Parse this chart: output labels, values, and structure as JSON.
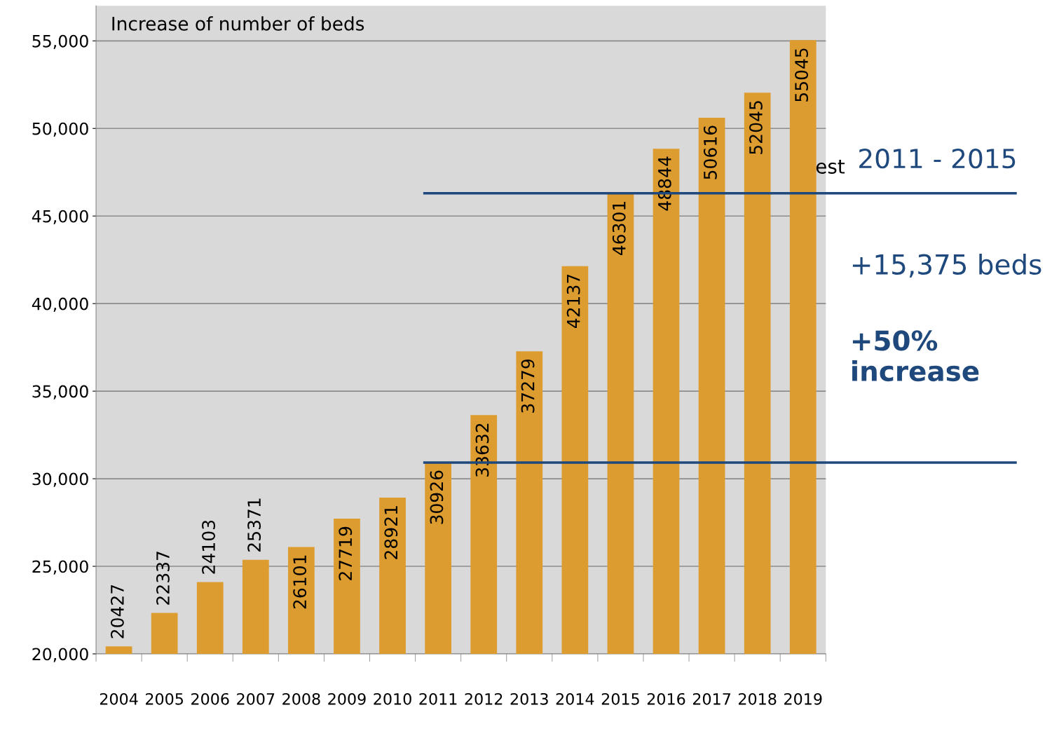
{
  "chart_data": {
    "type": "bar",
    "title": "Increase of number of beds",
    "categories": [
      "2004",
      "2005",
      "2006",
      "2007",
      "2008",
      "2009",
      "2010",
      "2011",
      "2012",
      "2013",
      "2014",
      "2015",
      "2016",
      "2017",
      "2018",
      "2019"
    ],
    "values": [
      20427,
      22337,
      24103,
      25371,
      26101,
      27719,
      28921,
      30926,
      33632,
      37279,
      42137,
      46301,
      48844,
      50616,
      52045,
      55045
    ],
    "color": "#dd9c30",
    "data_labels": true,
    "ylim": [
      20000,
      57000
    ],
    "yticks": [
      {
        "value": 20000,
        "label": "20,000"
      },
      {
        "value": 25000,
        "label": "25,000"
      },
      {
        "value": 30000,
        "label": "30,000"
      },
      {
        "value": 35000,
        "label": "35,000"
      },
      {
        "value": 40000,
        "label": "40,000"
      },
      {
        "value": 45000,
        "label": "45,000"
      },
      {
        "value": 50000,
        "label": "50,000"
      },
      {
        "value": 55000,
        "label": "55,000"
      }
    ],
    "grid": "y",
    "ref_lines": [
      {
        "axis": "y",
        "value": 30926,
        "label": null,
        "color": "#1f497d"
      },
      {
        "axis": "y",
        "value": 46301,
        "label": null,
        "color": "#1f497d"
      }
    ],
    "annotations": [
      "est",
      "2011 - 2015",
      "+15,375 beds",
      "+50%\nincrease"
    ]
  }
}
